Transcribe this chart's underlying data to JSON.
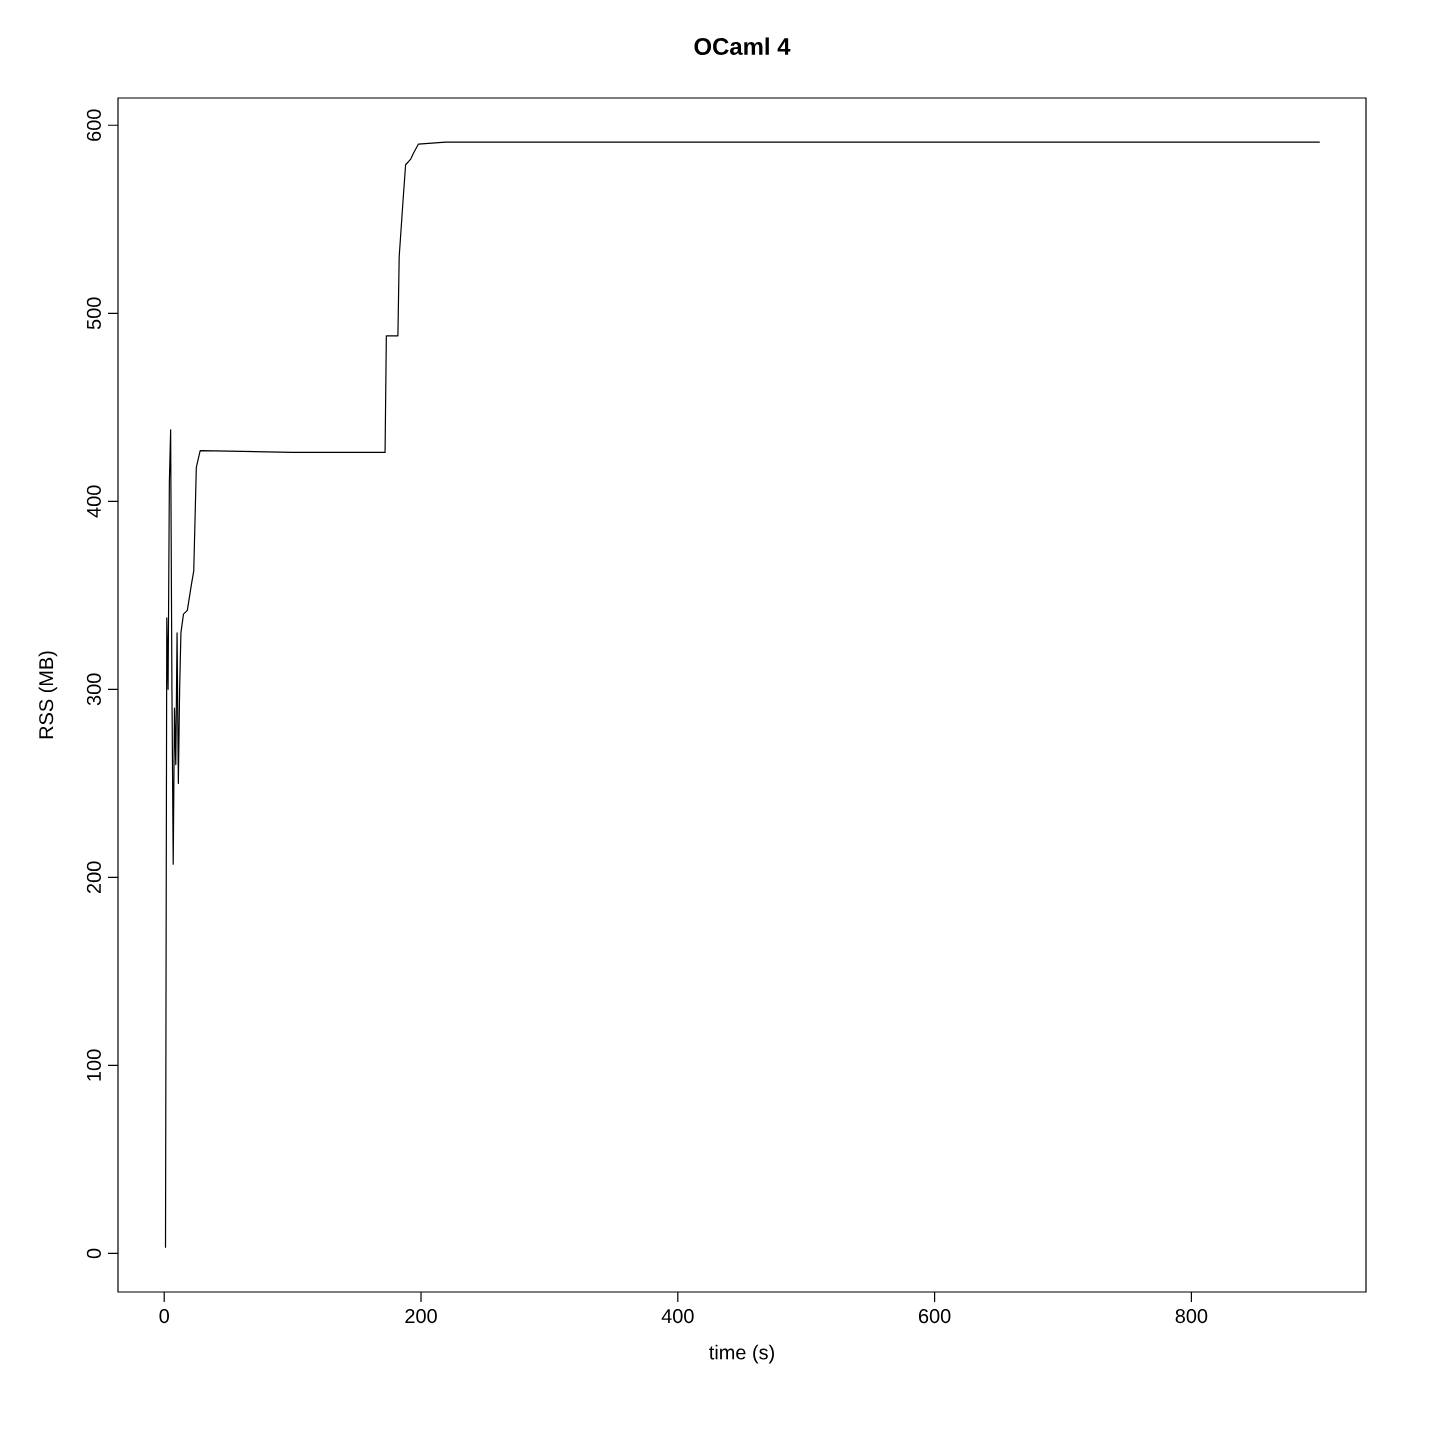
{
  "chart_data": {
    "type": "line",
    "title": "OCaml 4",
    "xlabel": "time (s)",
    "ylabel": "RSS (MB)",
    "xlim": [
      -36,
      936
    ],
    "ylim": [
      -20.5,
      614.5
    ],
    "xticks": [
      0,
      200,
      400,
      600,
      800
    ],
    "yticks": [
      0,
      100,
      200,
      300,
      400,
      500,
      600
    ],
    "marker": "none",
    "line_style": "solid",
    "series": [
      {
        "color": "#000000",
        "x": [
          1,
          2,
          3,
          4,
          5,
          6,
          7,
          8,
          9,
          10,
          11,
          12,
          13,
          15,
          18,
          21,
          23,
          25,
          28,
          100,
          172,
          173,
          182,
          183,
          186,
          188,
          192,
          194,
          198,
          219,
          400,
          600,
          900
        ],
        "values": [
          3,
          338,
          300,
          410,
          438,
          300,
          207,
          290,
          260,
          330,
          250,
          300,
          330,
          340,
          342,
          355,
          363,
          418,
          427,
          426,
          426,
          488,
          488,
          530,
          560,
          579,
          582,
          585,
          590,
          591,
          591,
          591,
          591
        ]
      }
    ]
  }
}
